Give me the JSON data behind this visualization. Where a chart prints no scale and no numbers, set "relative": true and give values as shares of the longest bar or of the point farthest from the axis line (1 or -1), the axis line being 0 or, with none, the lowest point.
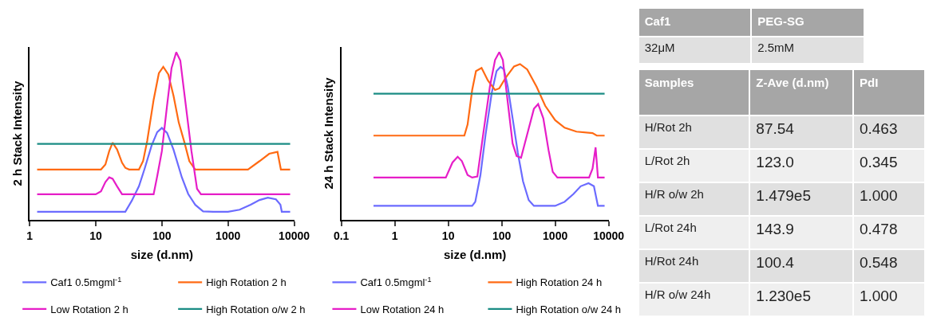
{
  "chart_data": [
    {
      "type": "line",
      "relative": true,
      "xlabel": "size (d.nm)",
      "ylabel": "2 h Stack Intensity",
      "log": "x",
      "xlim": [
        1,
        10000
      ],
      "xticks": [
        1,
        10,
        100,
        1000,
        10000
      ],
      "legend": "bottom",
      "marker": "none",
      "line_style": "solid",
      "tick_labels": "x",
      "series": [
        {
          "name": "Caf1 0.5mgml$^{-1}$",
          "color": "#6b6bff",
          "x": [
            1.3,
            28,
            35,
            45,
            55,
            70,
            85,
            100,
            120,
            150,
            200,
            250,
            320,
            420,
            600,
            1000,
            1500,
            2200,
            3000,
            4000,
            5300,
            6200,
            6500,
            8700
          ],
          "values": [
            0.048,
            0.048,
            0.113,
            0.2,
            0.306,
            0.443,
            0.523,
            0.548,
            0.518,
            0.418,
            0.254,
            0.154,
            0.089,
            0.05,
            0.048,
            0.048,
            0.06,
            0.09,
            0.118,
            0.132,
            0.122,
            0.09,
            0.048,
            0.048
          ]
        },
        {
          "name": "High Rotation 2 h",
          "color": "#ff6a13",
          "x": [
            1.3,
            12,
            14,
            16,
            18,
            21,
            25,
            28,
            32,
            45,
            52,
            60,
            75,
            90,
            105,
            125,
            150,
            180,
            220,
            260,
            320,
            2000,
            3000,
            4200,
            5600,
            6300,
            8700
          ],
          "values": [
            0.3,
            0.3,
            0.33,
            0.41,
            0.46,
            0.42,
            0.34,
            0.31,
            0.3,
            0.3,
            0.35,
            0.47,
            0.715,
            0.874,
            0.912,
            0.867,
            0.74,
            0.58,
            0.46,
            0.35,
            0.3,
            0.3,
            0.35,
            0.394,
            0.405,
            0.3,
            0.3
          ]
        },
        {
          "name": "Low Rotation 2 h",
          "color": "#e61ec8",
          "x": [
            1.3,
            10,
            12,
            14,
            16,
            18,
            21,
            25,
            75,
            85,
            100,
            120,
            140,
            165,
            190,
            220,
            280,
            340,
            390,
            8700
          ],
          "values": [
            0.152,
            0.152,
            0.17,
            0.225,
            0.253,
            0.245,
            0.2,
            0.152,
            0.152,
            0.26,
            0.41,
            0.685,
            0.905,
            1.0,
            0.95,
            0.745,
            0.41,
            0.185,
            0.152,
            0.152
          ]
        },
        {
          "name": "High Rotation o/w 2 h",
          "color": "#1a8c84",
          "x": [
            1.3,
            8700
          ],
          "values": [
            0.453,
            0.453
          ]
        }
      ]
    },
    {
      "type": "line",
      "relative": true,
      "xlabel": "size (d.nm)",
      "ylabel": "24 h Stack Intensity",
      "log": "x",
      "xlim": [
        0.1,
        10000
      ],
      "xticks": [
        0.1,
        1,
        10,
        100,
        1000,
        10000
      ],
      "legend": "bottom",
      "marker": "none",
      "line_style": "solid",
      "tick_labels": "x",
      "series": [
        {
          "name": "Caf1 0.5mgml$^{-1}$",
          "color": "#6b6bff",
          "x": [
            0.4,
            28,
            32,
            40,
            50,
            65,
            80,
            95,
            110,
            130,
            160,
            200,
            250,
            320,
            400,
            1000,
            1500,
            2200,
            3000,
            4200,
            5300,
            6300,
            8400
          ],
          "values": [
            0.083,
            0.083,
            0.107,
            0.267,
            0.51,
            0.756,
            0.887,
            0.912,
            0.897,
            0.793,
            0.605,
            0.4,
            0.23,
            0.117,
            0.083,
            0.083,
            0.107,
            0.154,
            0.2,
            0.218,
            0.2,
            0.083,
            0.083
          ]
        },
        {
          "name": "High Rotation 24 h",
          "color": "#ff6a13",
          "x": [
            0.4,
            20,
            23,
            28,
            33,
            42,
            55,
            75,
            90,
            120,
            170,
            220,
            300,
            450,
            650,
            1000,
            1500,
            2500,
            5000,
            6000,
            8400
          ],
          "values": [
            0.502,
            0.502,
            0.568,
            0.774,
            0.887,
            0.906,
            0.831,
            0.774,
            0.784,
            0.85,
            0.915,
            0.929,
            0.897,
            0.793,
            0.68,
            0.594,
            0.549,
            0.526,
            0.517,
            0.502,
            0.502
          ]
        },
        {
          "name": "Low Rotation 24 h",
          "color": "#e61ec8",
          "x": [
            0.4,
            9,
            12,
            15,
            18,
            23,
            28,
            35,
            45,
            60,
            75,
            90,
            105,
            130,
            160,
            190,
            230,
            300,
            400,
            480,
            600,
            750,
            900,
            1100,
            4300,
            5000,
            5700,
            6300,
            8400
          ],
          "values": [
            0.252,
            0.252,
            0.342,
            0.376,
            0.35,
            0.267,
            0.252,
            0.258,
            0.51,
            0.793,
            0.953,
            1.0,
            0.953,
            0.699,
            0.455,
            0.38,
            0.37,
            0.51,
            0.662,
            0.69,
            0.605,
            0.417,
            0.286,
            0.252,
            0.252,
            0.305,
            0.432,
            0.252,
            0.252
          ]
        },
        {
          "name": "High Rotation o/w 24 h",
          "color": "#1a8c84",
          "x": [
            0.4,
            8400
          ],
          "values": [
            0.752,
            0.752
          ]
        }
      ]
    },
    {
      "type": "other",
      "categories": [
        "Caf1",
        "PEG-SG"
      ],
      "cell_labels": [
        [
          "32μM",
          "2.5mM"
        ]
      ]
    },
    {
      "type": "other",
      "ylabel": "Samples",
      "categories": [
        "Z-Ave (d.nm)",
        "PdI"
      ],
      "y_categories": [
        "H/Rot 2h",
        "L/Rot 2h",
        "H/R o/w 2h",
        "L/Rot 24h",
        "H/Rot 24h",
        "H/R o/w 24h"
      ],
      "cell_labels": [
        [
          "87.54",
          "0.463"
        ],
        [
          "123.0",
          "0.345"
        ],
        [
          "1.479e5",
          "1.000"
        ],
        [
          "143.9",
          "0.478"
        ],
        [
          "100.4",
          "0.548"
        ],
        [
          "1.230e5",
          "1.000"
        ]
      ]
    }
  ]
}
